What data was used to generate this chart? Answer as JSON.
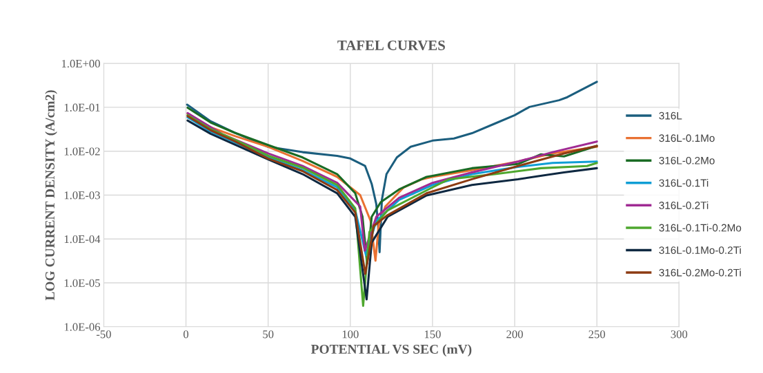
{
  "chart_data": {
    "type": "line",
    "title": "TAFEL CURVES",
    "xlabel": "POTENTIAL VS SEC (mV)",
    "ylabel": "LOG CURRENT DENSITY (A/cm2)",
    "log": "y",
    "grid": true,
    "legend": "right",
    "marker": "none",
    "line_style": "solid",
    "xlim": [
      -50,
      300
    ],
    "xticks": [
      -50,
      0,
      50,
      100,
      150,
      200,
      250,
      300
    ],
    "ylim": [
      1e-06,
      1
    ],
    "yticks": [
      {
        "value": 1e-06,
        "label": "1.0E-06"
      },
      {
        "value": 1e-05,
        "label": "1.0E-05"
      },
      {
        "value": 0.0001,
        "label": "1.0E-04"
      },
      {
        "value": 0.001,
        "label": "1.0E-03"
      },
      {
        "value": 0.01,
        "label": "1.0E-02"
      },
      {
        "value": 0.1,
        "label": "1.0E-01"
      },
      {
        "value": 1,
        "label": "1.0E+00"
      }
    ],
    "series": [
      {
        "name": "316L",
        "color": "#1b5e7e",
        "x": [
          0.7,
          15,
          29,
          50,
          71,
          92,
          100,
          109,
          113,
          115.8,
          116.9,
          117.8,
          119.2,
          122,
          128.3,
          136.7,
          150,
          163,
          174,
          188,
          200,
          209,
          227,
          232,
          250
        ],
        "values": [
          0.115,
          0.048,
          0.027,
          0.0126,
          0.0095,
          0.0078,
          0.0068,
          0.0046,
          0.0018,
          0.00062,
          0.0002,
          5e-05,
          0.00078,
          0.003,
          0.0072,
          0.0126,
          0.0174,
          0.0195,
          0.0257,
          0.0427,
          0.066,
          0.102,
          0.145,
          0.17,
          0.38
        ]
      },
      {
        "name": "316L-0.1Mo",
        "color": "#e97132",
        "x": [
          1,
          15,
          30,
          50,
          71,
          92,
          106,
          112.3,
          115.3,
          117.2,
          121.3,
          132.5,
          143.6,
          150,
          174,
          202,
          223,
          250
        ],
        "values": [
          0.071,
          0.035,
          0.022,
          0.0126,
          0.006,
          0.0026,
          0.001,
          0.00026,
          3.2e-05,
          0.0002,
          0.00055,
          0.0015,
          0.0023,
          0.0026,
          0.0037,
          0.0058,
          0.0089,
          0.0126
        ]
      },
      {
        "name": "316L-0.2Mo",
        "color": "#196b24",
        "x": [
          1,
          15,
          30,
          50,
          71,
          92,
          103,
          107.4,
          110.2,
          113,
          118.5,
          129.7,
          146.4,
          150,
          174,
          202,
          216,
          230,
          250
        ],
        "values": [
          0.098,
          0.045,
          0.026,
          0.0138,
          0.0072,
          0.003,
          0.0011,
          0.00032,
          2.75e-05,
          0.00032,
          0.00069,
          0.00135,
          0.0026,
          0.00275,
          0.0041,
          0.0051,
          0.0085,
          0.0076,
          0.0132
        ]
      },
      {
        "name": "316L-0.1Ti",
        "color": "#0f9ed5",
        "x": [
          1,
          15,
          30,
          50,
          71,
          92,
          103,
          109.5,
          115.8,
          129.7,
          150,
          174,
          202,
          223,
          250
        ],
        "values": [
          0.059,
          0.028,
          0.0158,
          0.0072,
          0.0037,
          0.0015,
          0.00045,
          4.3e-05,
          0.00026,
          0.00078,
          0.0017,
          0.003,
          0.0044,
          0.0054,
          0.0058
        ]
      },
      {
        "name": "316L-0.2Ti",
        "color": "#a02b93",
        "x": [
          1,
          22,
          50,
          71,
          92,
          106,
          108.8,
          115.8,
          129.7,
          150,
          174,
          202,
          223,
          250
        ],
        "values": [
          0.074,
          0.0245,
          0.0089,
          0.0046,
          0.0019,
          0.00055,
          5.4e-05,
          0.00032,
          0.00087,
          0.0019,
          0.0033,
          0.0058,
          0.0095,
          0.0166
        ]
      },
      {
        "name": "316L-0.1Ti-0.2Mo",
        "color": "#4ea72e",
        "x": [
          1,
          15,
          30,
          50,
          71,
          92,
          103,
          107.8,
          111.6,
          122.7,
          150,
          160,
          188,
          216,
          244,
          250
        ],
        "values": [
          0.066,
          0.032,
          0.018,
          0.0079,
          0.0042,
          0.0017,
          0.0005,
          3e-06,
          0.000145,
          0.00045,
          0.0015,
          0.0023,
          0.003,
          0.0041,
          0.0046,
          0.0054
        ]
      },
      {
        "name": "316L-0.1Mo-0.2Ti",
        "color": "#0e2841",
        "x": [
          1,
          15,
          30,
          50,
          71,
          92,
          103,
          109.9,
          113,
          122.7,
          146.4,
          174,
          202,
          230,
          250
        ],
        "values": [
          0.05,
          0.025,
          0.014,
          0.0065,
          0.003,
          0.0011,
          0.00032,
          4.2e-06,
          8.3e-05,
          0.00032,
          0.00098,
          0.0017,
          0.0023,
          0.0033,
          0.0041
        ]
      },
      {
        "name": "316L-0.2Mo-0.2Ti",
        "color": "#8c3b12",
        "x": [
          1,
          15,
          30,
          50,
          71,
          92,
          103,
          109.1,
          114.3,
          122.7,
          146.4,
          174,
          202,
          230,
          250
        ],
        "values": [
          0.063,
          0.03,
          0.0166,
          0.0068,
          0.0035,
          0.0013,
          0.0004,
          1.6e-05,
          0.0002,
          0.00035,
          0.0011,
          0.0023,
          0.0046,
          0.0089,
          0.0132
        ]
      }
    ]
  }
}
